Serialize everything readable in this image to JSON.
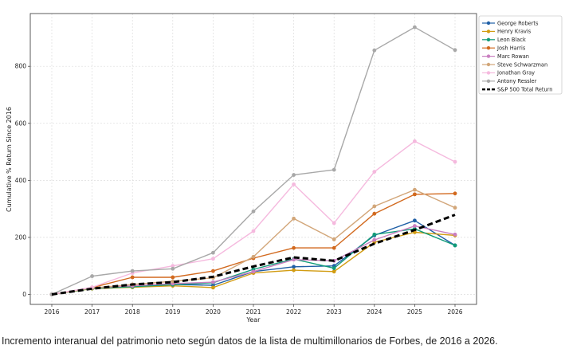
{
  "caption": "Incremento interanual del patrimonio neto según datos de la lista de multimillonarios de Forbes, de 2016 a 2026.",
  "chart_data": {
    "type": "line",
    "xlabel": "Year",
    "ylabel": "Cumulative % Return Since 2016",
    "x": [
      2016,
      2017,
      2018,
      2019,
      2020,
      2021,
      2022,
      2023,
      2024,
      2025,
      2026
    ],
    "x_ticks": [
      "2016",
      "2017",
      "2018",
      "2019",
      "2020",
      "2021",
      "2022",
      "2023",
      "2024",
      "2025",
      "2026"
    ],
    "ylim": [
      -35,
      985
    ],
    "y_ticks": [
      0,
      200,
      400,
      600,
      800
    ],
    "grid": true,
    "legend_position": "outside-right",
    "series": [
      {
        "name": "George Roberts",
        "color": "#1f5fa6",
        "style": "solid",
        "marker": true,
        "values": [
          0,
          22,
          28,
          35,
          32,
          80,
          97,
          100,
          207,
          259,
          172
        ]
      },
      {
        "name": "Henry Kravis",
        "color": "#d29c12",
        "style": "solid",
        "marker": true,
        "values": [
          0,
          20,
          25,
          30,
          24,
          75,
          85,
          80,
          183,
          218,
          207
        ]
      },
      {
        "name": "Leon Black",
        "color": "#109b78",
        "style": "solid",
        "marker": true,
        "values": [
          0,
          21,
          27,
          34,
          41,
          88,
          124,
          92,
          210,
          230,
          172
        ]
      },
      {
        "name": "Josh Harris",
        "color": "#d2691e",
        "style": "solid",
        "marker": true,
        "values": [
          0,
          24,
          60,
          60,
          82,
          127,
          163,
          163,
          283,
          351,
          354
        ]
      },
      {
        "name": "Marc Rowan",
        "color": "#c97fc0",
        "style": "solid",
        "marker": true,
        "values": [
          0,
          23,
          30,
          38,
          43,
          80,
          122,
          118,
          191,
          240,
          210
        ]
      },
      {
        "name": "Steve Schwarzman",
        "color": "#d2a679",
        "style": "solid",
        "marker": true,
        "values": [
          0,
          22,
          35,
          46,
          58,
          132,
          266,
          193,
          309,
          367,
          304
        ]
      },
      {
        "name": "Jonathan Gray",
        "color": "#f5b9de",
        "style": "solid",
        "marker": true,
        "values": [
          0,
          25,
          75,
          100,
          125,
          222,
          386,
          250,
          430,
          537,
          465
        ]
      },
      {
        "name": "Antony Ressler",
        "color": "#a8a8a8",
        "style": "solid",
        "marker": true,
        "values": [
          0,
          64,
          82,
          90,
          146,
          291,
          419,
          437,
          856,
          937,
          857
        ]
      },
      {
        "name": "S&P 500 Total Return",
        "color": "#000000",
        "style": "dashed",
        "marker": false,
        "values": [
          0,
          20,
          35,
          43,
          62,
          98,
          130,
          118,
          178,
          226,
          279
        ]
      }
    ]
  }
}
